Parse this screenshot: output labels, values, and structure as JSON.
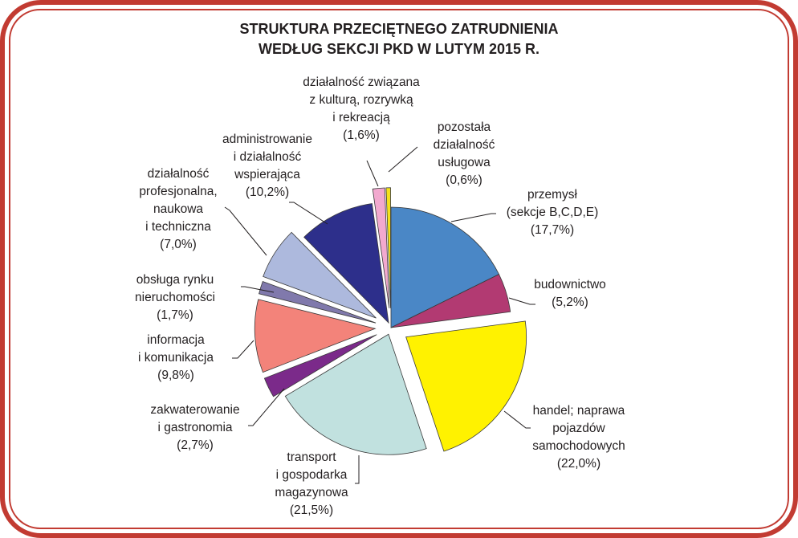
{
  "chart_data": {
    "type": "pie",
    "title": [
      "STRUKTURA PRZECIĘTNEGO ZATRUDNIENIA",
      "WEDŁUG SEKCJI PKD W LUTYM 2015 R."
    ],
    "start": "top",
    "direction": "clockwise",
    "slices": [
      {
        "label": [
          "przemysł",
          "(sekcje B,C,D,E)"
        ],
        "value": 17.7,
        "value_label": "(17,7%)",
        "color": "#4a87c6",
        "exploded": 0
      },
      {
        "label": [
          "budownictwo"
        ],
        "value": 5.2,
        "value_label": "(5,2%)",
        "color": "#b23a72",
        "exploded": 0
      },
      {
        "label": [
          "handel; naprawa",
          "pojazdów",
          "samochodowych"
        ],
        "value": 22.0,
        "value_label": "(22,0%)",
        "color": "#fff200",
        "exploded": 1
      },
      {
        "label": [
          "transport",
          "i gospodarka",
          "magazynowa"
        ],
        "value": 21.5,
        "value_label": "(21,5%)",
        "color": "#c1e1df",
        "exploded": 0.4
      },
      {
        "label": [
          "zakwaterowanie",
          "i gastronomia"
        ],
        "value": 2.7,
        "value_label": "(2,7%)",
        "color": "#7b2a8a",
        "exploded": 0.9
      },
      {
        "label": [
          "informacja",
          "i komunikacja"
        ],
        "value": 9.8,
        "value_label": "(9,8%)",
        "color": "#f3837a",
        "exploded": 0.9
      },
      {
        "label": [
          "obsługa rynku",
          "nieruchomości"
        ],
        "value": 1.7,
        "value_label": "(1,7%)",
        "color": "#8079ac",
        "exploded": 0.9
      },
      {
        "label": [
          "działalność",
          "profesjonalna,",
          "naukowa",
          "i techniczna"
        ],
        "value": 7.0,
        "value_label": "(7,0%)",
        "color": "#adb9dd",
        "exploded": 1
      },
      {
        "label": [
          "administrowanie",
          "i działalność",
          "wspierająca"
        ],
        "value": 10.2,
        "value_label": "(10,2%)",
        "color": "#2d2f8b",
        "exploded": 0.3
      },
      {
        "label": [
          "działalność związana",
          "z kulturą, rozrywką",
          "i rekreacją"
        ],
        "value": 1.6,
        "value_label": "(1,6%)",
        "color": "#f2a9cf",
        "exploded": 1.1
      },
      {
        "label": [
          "pozostała",
          "działalność",
          "usługowa"
        ],
        "value": 0.6,
        "value_label": "(0,6%)",
        "color": "#f4e11b",
        "exploded": 1.1
      }
    ]
  },
  "frame_color": "#c23b32"
}
